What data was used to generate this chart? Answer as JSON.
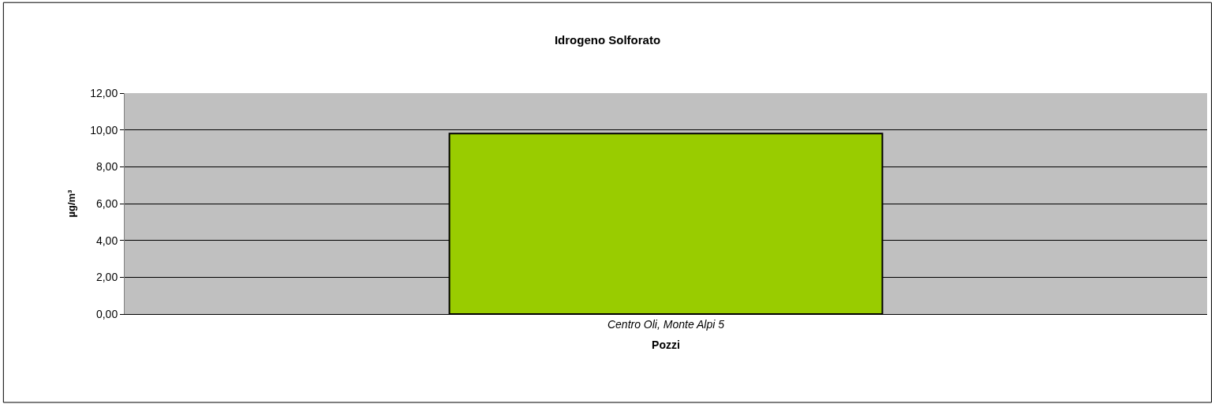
{
  "chart_data": {
    "type": "bar",
    "title": "Idrogeno Solforato",
    "xlabel": "Pozzi",
    "ylabel": "µg/m³",
    "categories": [
      "Centro Oli, Monte Alpi 5"
    ],
    "values": [
      9.8
    ],
    "color": "#99cc00",
    "ylim": [
      0,
      12
    ],
    "yticks": [
      {
        "value": 0,
        "label": "0,00"
      },
      {
        "value": 2,
        "label": "2,00"
      },
      {
        "value": 4,
        "label": "4,00"
      },
      {
        "value": 6,
        "label": "6,00"
      },
      {
        "value": 8,
        "label": "8,00"
      },
      {
        "value": 10,
        "label": "10,00"
      },
      {
        "value": 12,
        "label": "12,00"
      }
    ],
    "grid": "y"
  }
}
